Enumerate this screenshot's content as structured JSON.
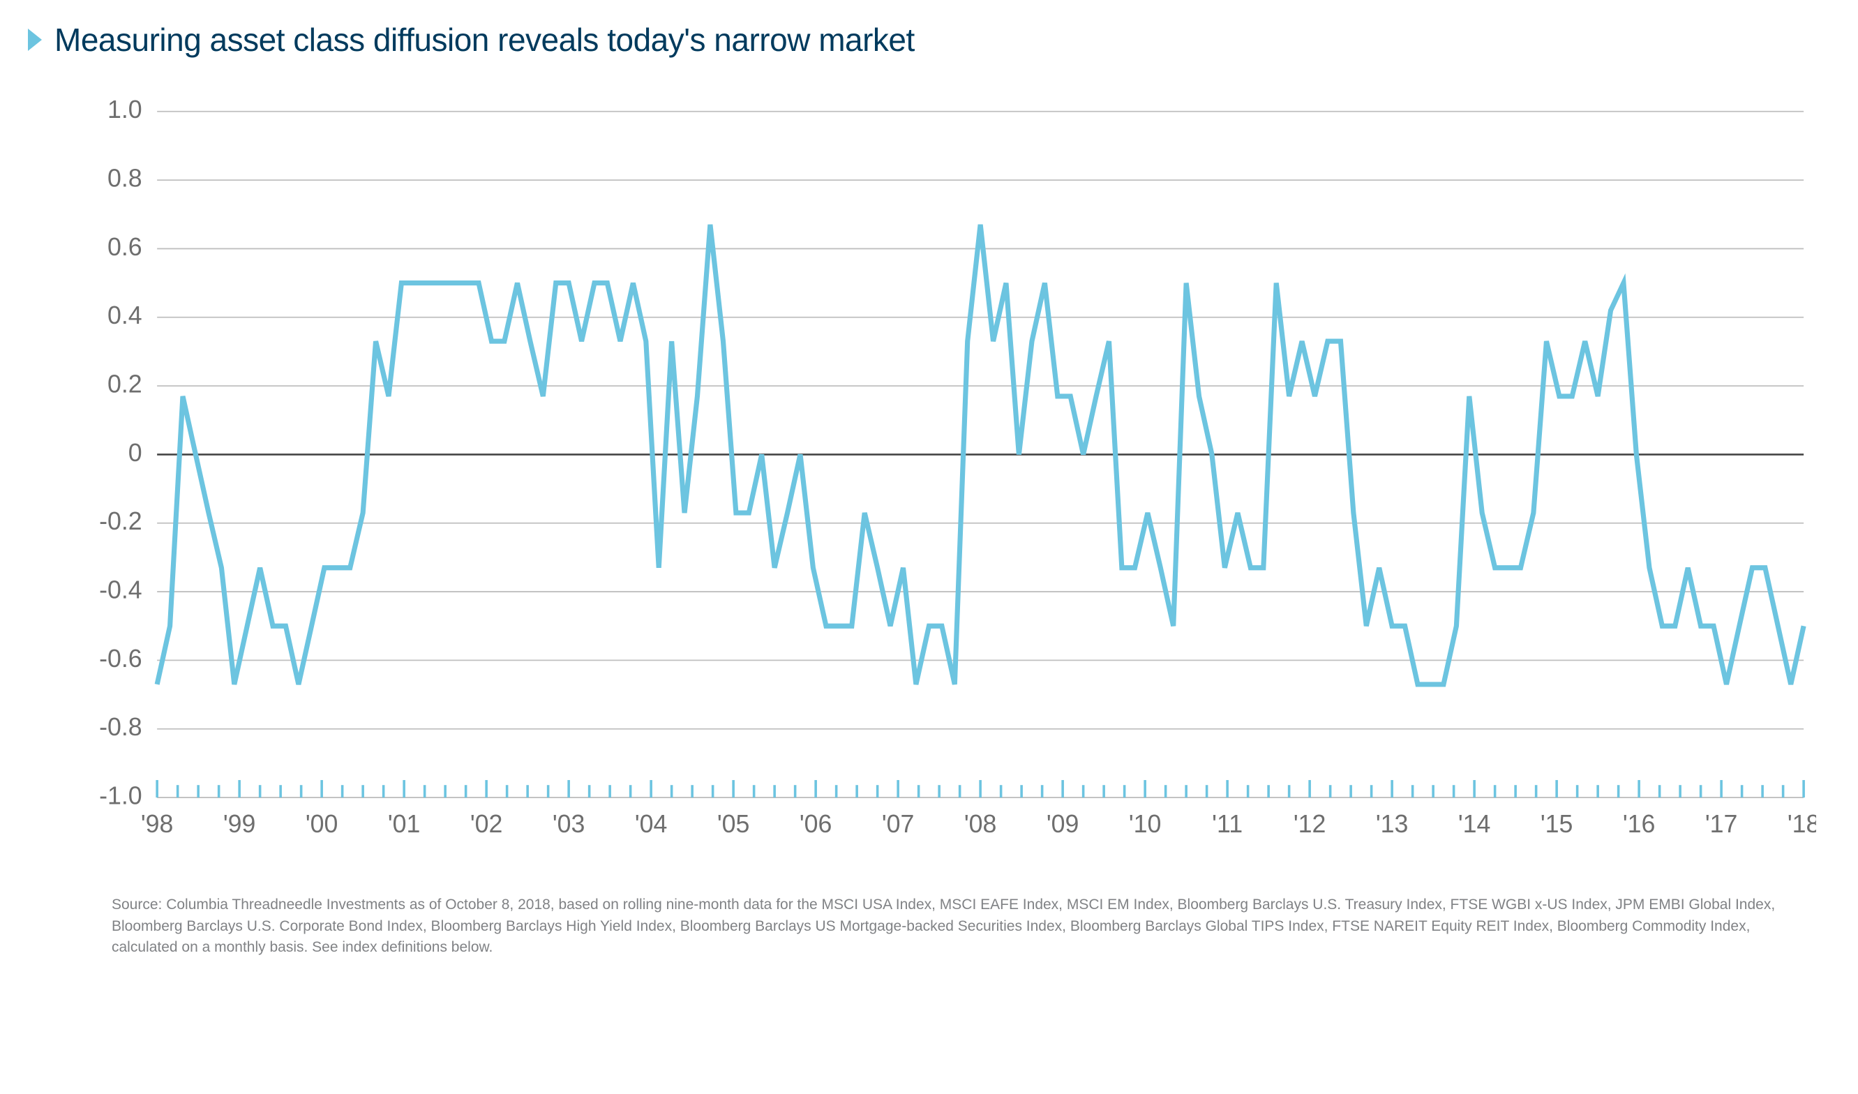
{
  "title": {
    "arrow_color": "#6cc4e0",
    "text_color": "#003a5d",
    "text": "Measuring asset class diffusion reveals today's narrow market",
    "fontsize": 46
  },
  "chart": {
    "type": "line",
    "line_color": "#6cc4e0",
    "line_width": 4,
    "background_color": "#ffffff",
    "grid_color": "#bfbfbf",
    "zero_line_color": "#444444",
    "tick_color": "#6cc4e0",
    "axis_label_color": "#6e6e6e",
    "axis_fontsize": 20,
    "ylim": [
      -1.0,
      1.0
    ],
    "yticks": [
      1.0,
      0.8,
      0.6,
      0.4,
      0.2,
      0,
      -0.4,
      -0.2,
      -0.6,
      -0.8,
      -1.0
    ],
    "ytick_labels": [
      "1.0",
      "0.8",
      "0.6",
      "0.4",
      "0.2",
      "0",
      "-0.4",
      "-0.2",
      "-0.6",
      "-0.8",
      "-1.0"
    ],
    "xlabels": [
      "'98",
      "'99",
      "'00",
      "'01",
      "'02",
      "'03",
      "'04",
      "'05",
      "'06",
      "'07",
      "'08",
      "'09",
      "'10",
      "'11",
      "'12",
      "'13",
      "'14",
      "'15",
      "'16",
      "'17",
      "'18"
    ],
    "values": [
      -0.67,
      -0.5,
      0.17,
      0.0,
      -0.17,
      -0.33,
      -0.67,
      -0.5,
      -0.33,
      -0.5,
      -0.5,
      -0.67,
      -0.5,
      -0.33,
      -0.33,
      -0.33,
      -0.17,
      0.33,
      0.17,
      0.5,
      0.5,
      0.5,
      0.5,
      0.5,
      0.5,
      0.5,
      0.33,
      0.33,
      0.5,
      0.33,
      0.17,
      0.5,
      0.5,
      0.33,
      0.5,
      0.5,
      0.33,
      0.5,
      0.33,
      -0.33,
      0.33,
      -0.17,
      0.17,
      0.67,
      0.33,
      -0.17,
      -0.17,
      0.0,
      -0.33,
      -0.17,
      0.0,
      -0.33,
      -0.5,
      -0.5,
      -0.5,
      -0.17,
      -0.33,
      -0.5,
      -0.33,
      -0.67,
      -0.5,
      -0.5,
      -0.67,
      0.33,
      0.67,
      0.33,
      0.5,
      0.0,
      0.33,
      0.5,
      0.17,
      0.17,
      0.0,
      0.17,
      0.33,
      -0.33,
      -0.33,
      -0.17,
      -0.33,
      -0.5,
      0.5,
      0.17,
      0.0,
      -0.33,
      -0.17,
      -0.33,
      -0.33,
      0.5,
      0.17,
      0.33,
      0.17,
      0.33,
      0.33,
      -0.17,
      -0.5,
      -0.33,
      -0.5,
      -0.5,
      -0.67,
      -0.67,
      -0.67,
      -0.5,
      0.17,
      -0.17,
      -0.33,
      -0.33,
      -0.33,
      -0.17,
      0.33,
      0.17,
      0.17,
      0.33,
      0.17,
      0.42,
      0.5,
      0.0,
      -0.33,
      -0.5,
      -0.5,
      -0.33,
      -0.5,
      -0.5,
      -0.67,
      -0.5,
      -0.33,
      -0.33,
      -0.5,
      -0.67,
      -0.5
    ]
  },
  "source": {
    "text": "Source: Columbia Threadneedle Investments as of October 8, 2018, based on rolling nine-month data for the MSCI USA Index, MSCI EAFE Index, MSCI EM Index, Bloomberg Barclays U.S. Treasury Index, FTSE WGBI x-US Index, JPM EMBI Global Index, Bloomberg Barclays U.S. Corporate Bond Index, Bloomberg Barclays High Yield Index, Bloomberg Barclays US Mortgage-backed Securities Index, Bloomberg Barclays Global TIPS Index, FTSE NAREIT Equity REIT Index, Bloomberg Commodity Index, calculated on a monthly basis. See index definitions below.",
    "color": "#808285",
    "fontsize": 21
  }
}
